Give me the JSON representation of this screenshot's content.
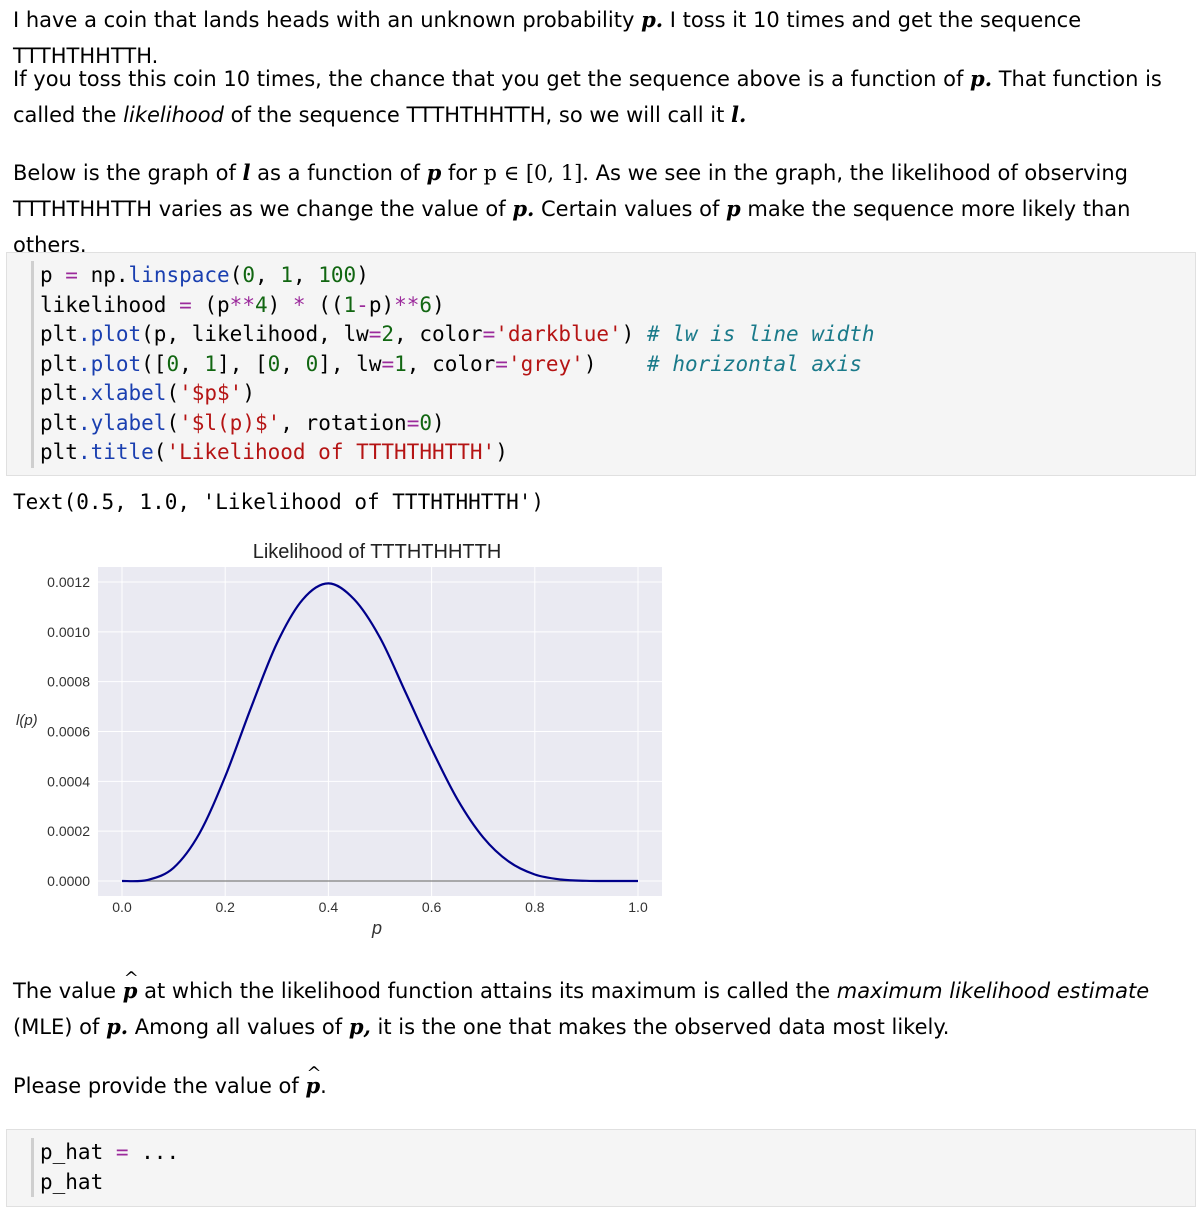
{
  "intro": {
    "p1_a": "I have a coin that lands heads with an unknown probability ",
    "p1_var": "p.",
    "p1_b": " I toss it 10 times and get the sequence TTTHTHHTTH.",
    "p2_a": "If you toss this coin 10 times, the chance that you get the sequence above is a function of ",
    "p2_var": "p.",
    "p2_b": " That function is called the ",
    "p2_em": "likelihood",
    "p2_c": " of the sequence TTTHTHHTTH, so we will call it ",
    "p2_var2": "l.",
    "p3_a": "Below is the graph of ",
    "p3_var": "l",
    "p3_b": " as a function of ",
    "p3_var2": "p",
    "p3_c": " for ",
    "p3_math": "p ∈ [0, 1].",
    "p3_d": " As we see in the graph, the likelihood of observing TTTHTHHTTH varies as we change the value of ",
    "p3_var3": "p.",
    "p3_e": " Certain values of ",
    "p3_var4": "p",
    "p3_f": " make the sequence more likely than others."
  },
  "code_cell": {
    "line1": [
      "p ",
      "= ",
      "np",
      ".",
      "linspace",
      "(",
      "0",
      ", ",
      "1",
      ", ",
      "100",
      ")"
    ],
    "line2_pre": "likelihood ",
    "line2_eq": "=",
    "line2_a": " (p",
    "line2_pow": "**",
    "line2_4": "4",
    "line2_b": ") ",
    "line2_mul": "*",
    "line2_c": " ((",
    "line2_1": "1",
    "line2_minus": "-",
    "line2_d": "p)",
    "line2_pow2": "**",
    "line2_6": "6",
    "line2_e": ")",
    "line3_plt": "plt",
    "line3_fn": ".plot",
    "line3_args": "(p, likelihood, lw",
    "line3_eq": "=",
    "line3_num": "2",
    "line3_mid": ", color",
    "line3_eq2": "=",
    "line3_str": "'darkblue'",
    "line3_end": ") ",
    "line3_cmt": "# lw is line width",
    "line4_plt": "plt",
    "line4_fn": ".plot",
    "line4_a": "([",
    "line4_n0": "0",
    "line4_b": ", ",
    "line4_n1": "1",
    "line4_c": "], [",
    "line4_n2": "0",
    "line4_d": ", ",
    "line4_n3": "0",
    "line4_e": "], lw",
    "line4_eq": "=",
    "line4_n4": "1",
    "line4_f": ", color",
    "line4_eq2": "=",
    "line4_str": "'grey'",
    "line4_g": ")    ",
    "line4_cmt": "# horizontal axis",
    "line5_plt": "plt",
    "line5_fn": ".xlabel",
    "line5_a": "(",
    "line5_str": "'$p$'",
    "line5_b": ")",
    "line6_plt": "plt",
    "line6_fn": ".ylabel",
    "line6_a": "(",
    "line6_str": "'$l(p)$'",
    "line6_b": ", rotation",
    "line6_eq": "=",
    "line6_num": "0",
    "line6_c": ")",
    "line7_plt": "plt",
    "line7_fn": ".title",
    "line7_a": "(",
    "line7_str": "'Likelihood of TTTHTHHTTH'",
    "line7_b": ")"
  },
  "output_text": "Text(0.5, 1.0, 'Likelihood of TTTHTHHTTH')",
  "chart_data": {
    "type": "line",
    "title": "Likelihood of TTTHTHHTTH",
    "xlabel": "p",
    "ylabel": "l(p)",
    "xlim": [
      0,
      1
    ],
    "ylim": [
      0,
      0.0012
    ],
    "xticks": [
      "0.0",
      "0.2",
      "0.4",
      "0.6",
      "0.8",
      "1.0"
    ],
    "yticks": [
      "0.0000",
      "0.0002",
      "0.0004",
      "0.0006",
      "0.0008",
      "0.0010",
      "0.0012"
    ],
    "grid": true,
    "series": [
      {
        "color": "#00008b",
        "x": [
          0,
          0.05,
          0.1,
          0.15,
          0.2,
          0.25,
          0.3,
          0.35,
          0.4,
          0.45,
          0.5,
          0.55,
          0.6,
          0.65,
          0.7,
          0.75,
          0.8,
          0.85,
          0.9,
          0.95,
          1.0
        ],
        "y": [
          0,
          4.6e-06,
          5.31e-05,
          0.0001908,
          0.0004194,
          0.0006952,
          0.000953,
          0.0011291,
          0.0011944,
          0.0011301,
          0.0009766,
          0.0007548,
          0.0005308,
          0.0003279,
          0.000175,
          7.73e-05,
          2.62e-05,
          6e-06,
          7e-07,
          0.0,
          0
        ]
      },
      {
        "color": "#808080",
        "x": [
          0,
          1
        ],
        "y": [
          0,
          0
        ]
      }
    ]
  },
  "mle": {
    "a": "The value ",
    "phat": "p",
    "b": " at which the likelihood function attains its maximum is called the ",
    "em": "maximum likelihood estimate",
    "c": " (MLE) of ",
    "var": "p.",
    "d": " Among all values of ",
    "var2": "p,",
    "e": " it is the one that makes the observed data most likely.",
    "ask_a": "Please provide the value of ",
    "ask_phat": "p",
    "ask_b": "."
  },
  "answer_cell": {
    "l1_var": "p_hat ",
    "l1_eq": "=",
    "l1_val": " ...",
    "l2": "p_hat"
  }
}
